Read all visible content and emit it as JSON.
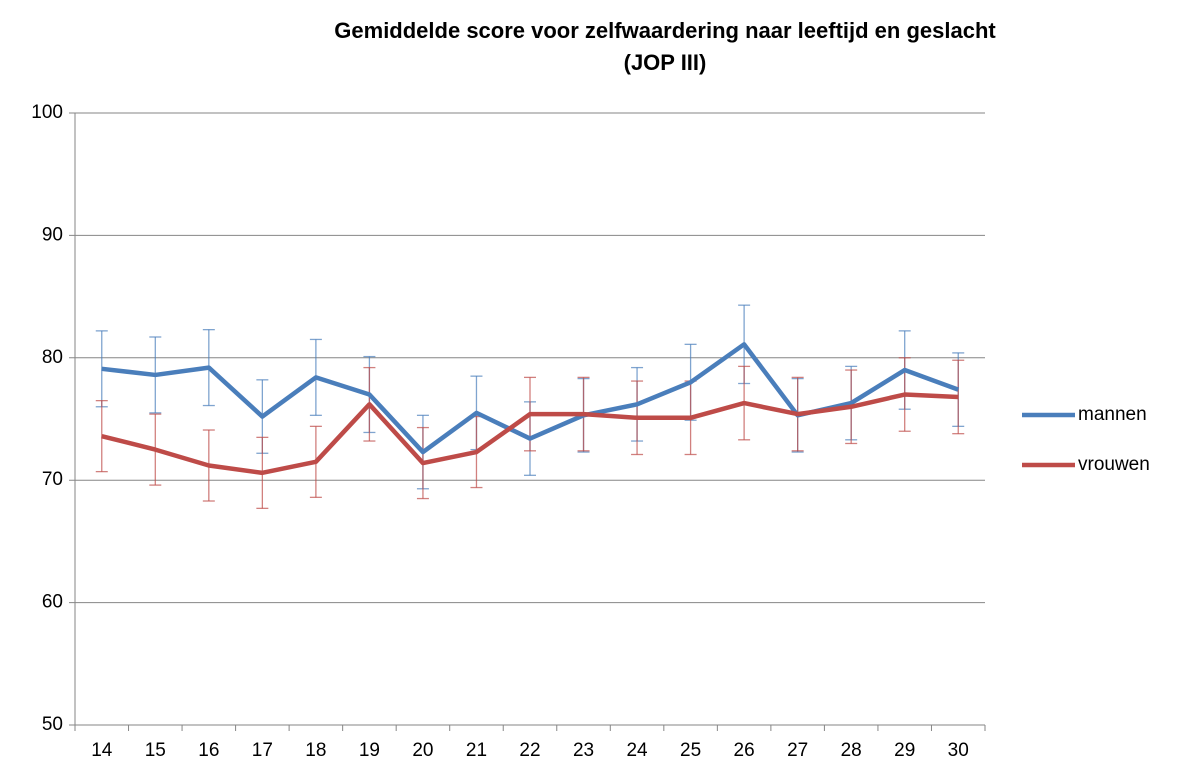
{
  "chart_data": {
    "type": "line",
    "title": [
      "Gemiddelde score voor zelfwaardering naar leeftijd en geslacht",
      "(JOP III)"
    ],
    "categories": [
      "14",
      "15",
      "16",
      "17",
      "18",
      "19",
      "20",
      "21",
      "22",
      "23",
      "24",
      "25",
      "26",
      "27",
      "28",
      "29",
      "30"
    ],
    "series": [
      {
        "name": "mannen",
        "color": "#4a7ebb",
        "values": [
          79.1,
          78.6,
          79.2,
          75.2,
          78.4,
          77.0,
          72.3,
          75.5,
          73.4,
          75.3,
          76.2,
          78.0,
          81.1,
          75.3,
          76.3,
          79.0,
          77.4
        ],
        "errors": [
          3.1,
          3.1,
          3.1,
          3.0,
          3.1,
          3.1,
          3.0,
          3.0,
          3.0,
          3.0,
          3.0,
          3.1,
          3.2,
          3.0,
          3.0,
          3.2,
          3.0
        ]
      },
      {
        "name": "vrouwen",
        "color": "#be4b48",
        "values": [
          73.6,
          72.5,
          71.2,
          70.6,
          71.5,
          76.2,
          71.4,
          72.3,
          75.4,
          75.4,
          75.1,
          75.1,
          76.3,
          75.4,
          76.0,
          77.0,
          76.8
        ],
        "errors": [
          2.9,
          2.9,
          2.9,
          2.9,
          2.9,
          3.0,
          2.9,
          2.9,
          3.0,
          3.0,
          3.0,
          3.0,
          3.0,
          3.0,
          3.0,
          3.0,
          3.0
        ]
      }
    ],
    "ylim": [
      50,
      100
    ],
    "yticks": [
      50,
      60,
      70,
      80,
      90,
      100
    ],
    "grid": true,
    "legend": "right"
  }
}
